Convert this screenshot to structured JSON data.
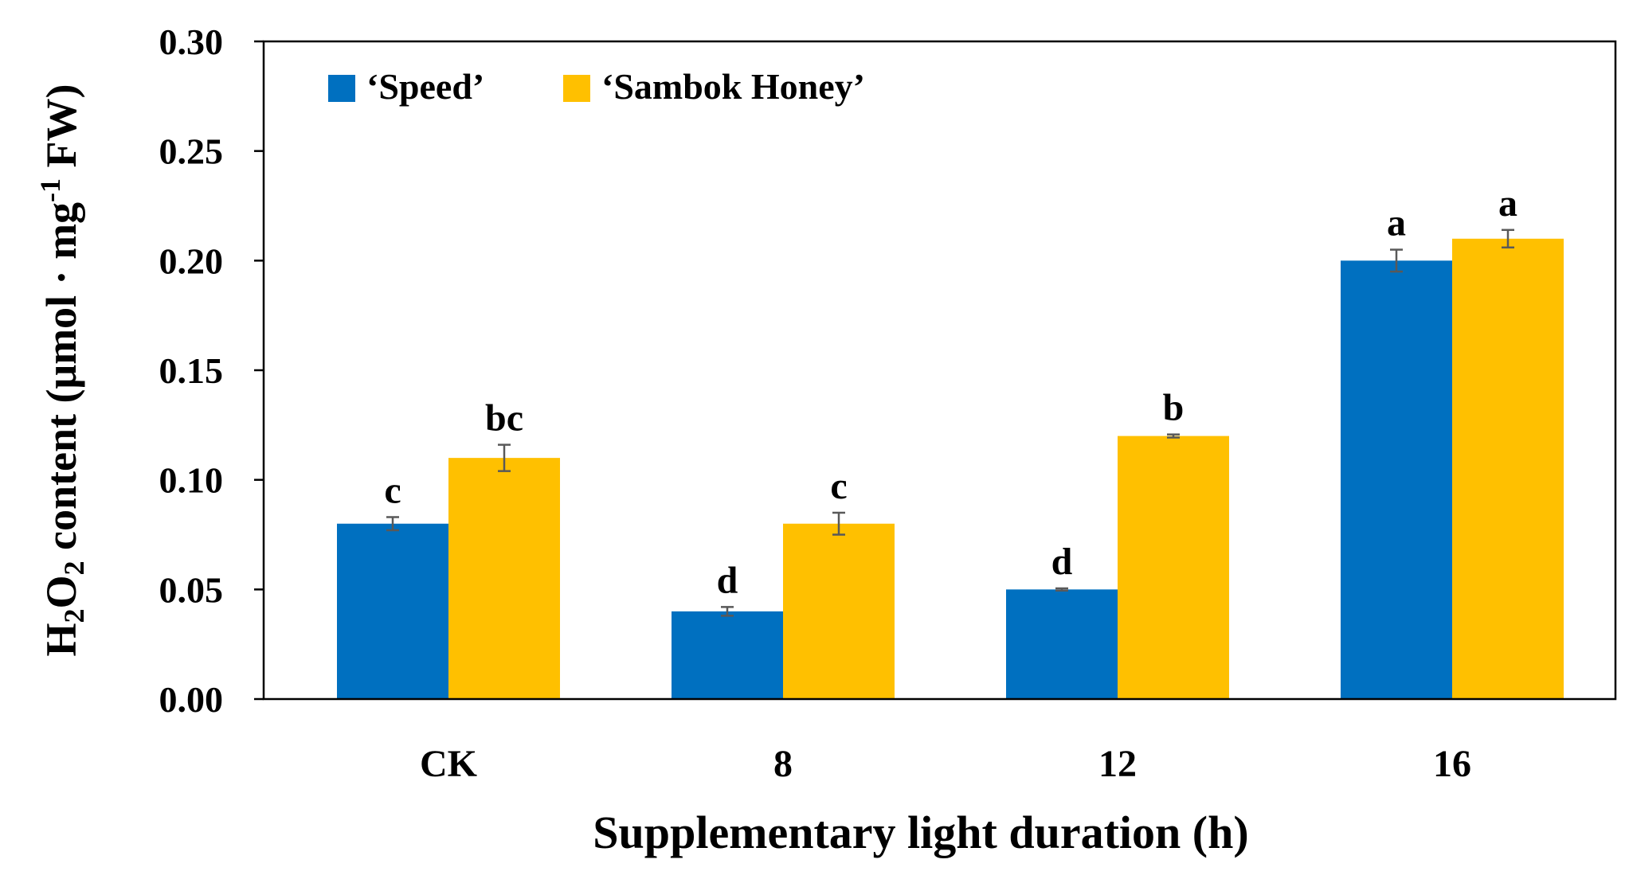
{
  "chart_data": {
    "type": "bar",
    "title": "",
    "xlabel": "Supplementary light duration (h)",
    "ylabel": {
      "p1": "H",
      "s1": "2",
      "p2": "O",
      "s2": "2",
      "p3": " content (μmol · mg",
      "sup": "-1",
      "p4": " FW)"
    },
    "ylim": [
      0,
      0.3
    ],
    "yticks": [
      "0.00",
      "0.05",
      "0.10",
      "0.15",
      "0.20",
      "0.25",
      "0.30"
    ],
    "categories": [
      "CK",
      "8",
      "12",
      "16"
    ],
    "series": [
      {
        "name": "‘Speed’",
        "color": "#0070C0",
        "values": [
          0.08,
          0.04,
          0.05,
          0.2
        ],
        "errors": [
          0.003,
          0.002,
          0.0005,
          0.005
        ],
        "labels": [
          "c",
          "d",
          "d",
          "a"
        ]
      },
      {
        "name": "‘Sambok Honey’",
        "color": "#FFC000",
        "values": [
          0.11,
          0.08,
          0.12,
          0.21
        ],
        "errors": [
          0.006,
          0.005,
          0.0007,
          0.004
        ],
        "labels": [
          "bc",
          "c",
          "b",
          "a"
        ]
      }
    ],
    "legend_position": "top-left",
    "grid": false
  }
}
